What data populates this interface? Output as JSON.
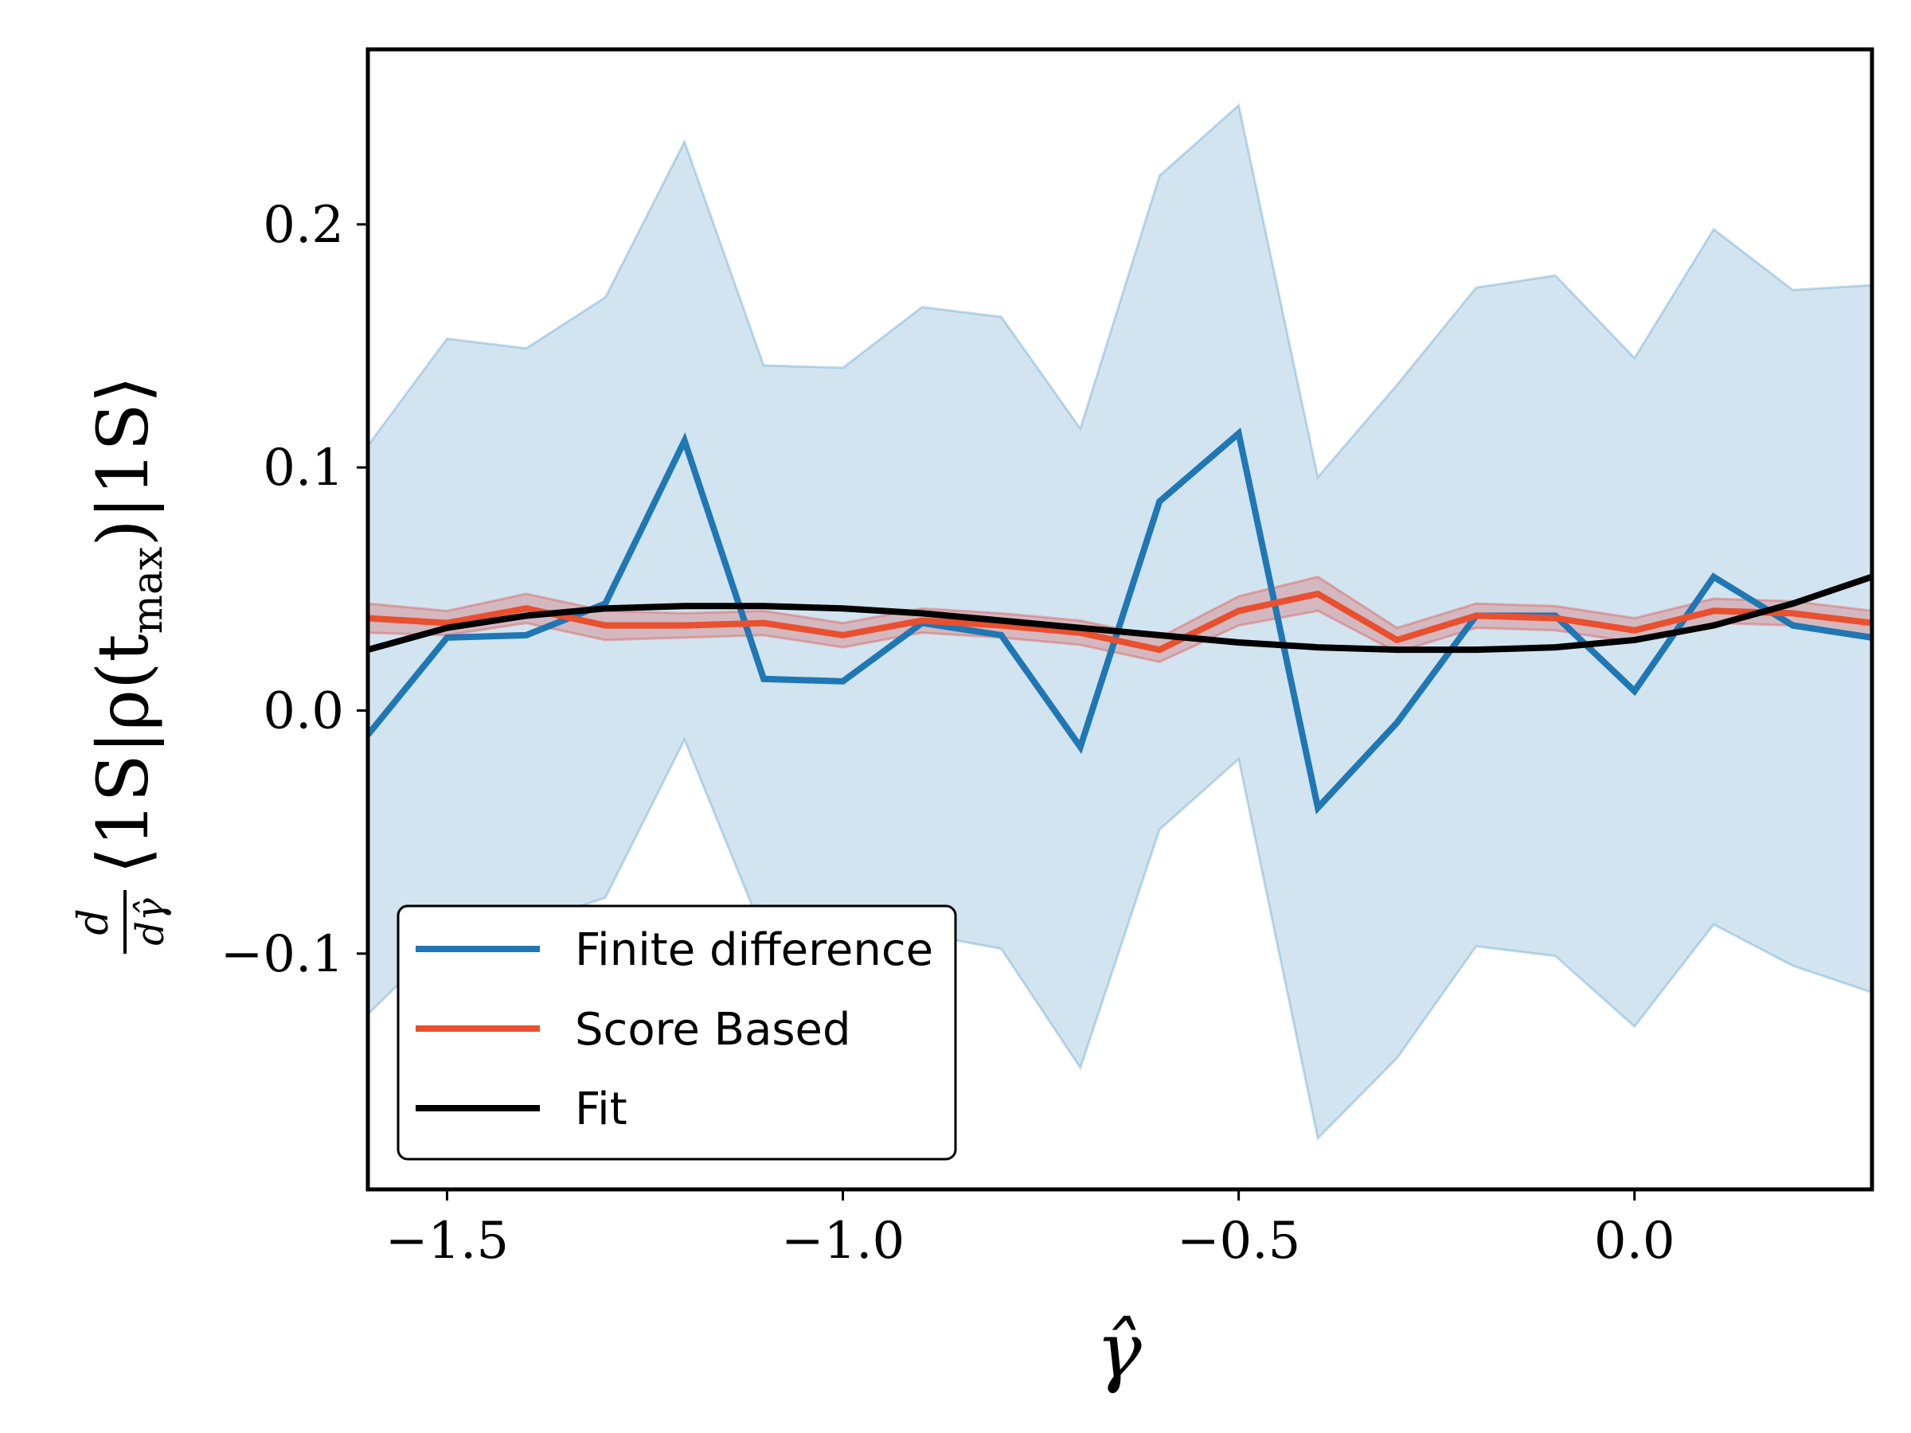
{
  "chart_data": {
    "type": "line",
    "x": [
      -1.6,
      -1.5,
      -1.4,
      -1.3,
      -1.2,
      -1.1,
      -1.0,
      -0.9,
      -0.8,
      -0.7,
      -0.6,
      -0.5,
      -0.4,
      -0.3,
      -0.2,
      -0.1,
      0.0,
      0.1,
      0.2,
      0.3
    ],
    "series": [
      {
        "name": "Finite difference",
        "color": "#1f77b4",
        "values": [
          -0.01,
          0.03,
          0.031,
          0.044,
          0.111,
          0.013,
          0.012,
          0.036,
          0.031,
          -0.015,
          0.086,
          0.114,
          -0.04,
          -0.005,
          0.039,
          0.039,
          0.008,
          0.055,
          0.035,
          0.03
        ],
        "band_lower": [
          -0.125,
          -0.093,
          -0.088,
          -0.077,
          -0.012,
          -0.092,
          -0.092,
          -0.092,
          -0.098,
          -0.147,
          -0.049,
          -0.02,
          -0.176,
          -0.143,
          -0.097,
          -0.101,
          -0.13,
          -0.088,
          -0.105,
          -0.116
        ],
        "band_upper": [
          0.109,
          0.153,
          0.149,
          0.17,
          0.234,
          0.142,
          0.141,
          0.166,
          0.162,
          0.116,
          0.22,
          0.249,
          0.096,
          0.134,
          0.174,
          0.179,
          0.145,
          0.198,
          0.173,
          0.175
        ],
        "band_color": "#1f77b4"
      },
      {
        "name": "Score Based",
        "color": "#e8502f",
        "values": [
          0.038,
          0.036,
          0.042,
          0.035,
          0.035,
          0.036,
          0.031,
          0.037,
          0.035,
          0.032,
          0.025,
          0.041,
          0.048,
          0.029,
          0.039,
          0.038,
          0.033,
          0.041,
          0.04,
          0.036
        ],
        "band_lower": [
          0.032,
          0.031,
          0.036,
          0.029,
          0.03,
          0.031,
          0.026,
          0.032,
          0.03,
          0.027,
          0.02,
          0.035,
          0.041,
          0.024,
          0.034,
          0.033,
          0.028,
          0.036,
          0.035,
          0.031
        ],
        "band_upper": [
          0.044,
          0.041,
          0.048,
          0.041,
          0.04,
          0.041,
          0.036,
          0.042,
          0.04,
          0.037,
          0.03,
          0.047,
          0.055,
          0.034,
          0.044,
          0.043,
          0.038,
          0.046,
          0.045,
          0.041
        ],
        "band_color": "#d9534f"
      },
      {
        "name": "Fit",
        "color": "#000000",
        "values": [
          0.025,
          0.034,
          0.039,
          0.042,
          0.043,
          0.043,
          0.042,
          0.04,
          0.037,
          0.034,
          0.031,
          0.028,
          0.026,
          0.025,
          0.025,
          0.026,
          0.029,
          0.035,
          0.044,
          0.055
        ]
      }
    ],
    "xlabel": "γ̂",
    "ylabel_parts": {
      "frac_num": "d",
      "frac_den": "dγ̂",
      "body": "⟨1S|ρ(t",
      "subscript": "max",
      "tail": ")|1S⟩"
    },
    "xlim": [
      -1.6,
      0.3
    ],
    "ylim": [
      -0.197,
      0.272
    ],
    "xticks": [
      -1.5,
      -1.0,
      -0.5,
      0.0
    ],
    "xtick_labels": [
      "−1.5",
      "−1.0",
      "−0.5",
      "0.0"
    ],
    "yticks": [
      -0.1,
      0.0,
      0.1,
      0.2
    ],
    "ytick_labels": [
      "−0.1",
      "0.0",
      "0.1",
      "0.2"
    ],
    "legend_position": "lower-left",
    "grid": false
  }
}
